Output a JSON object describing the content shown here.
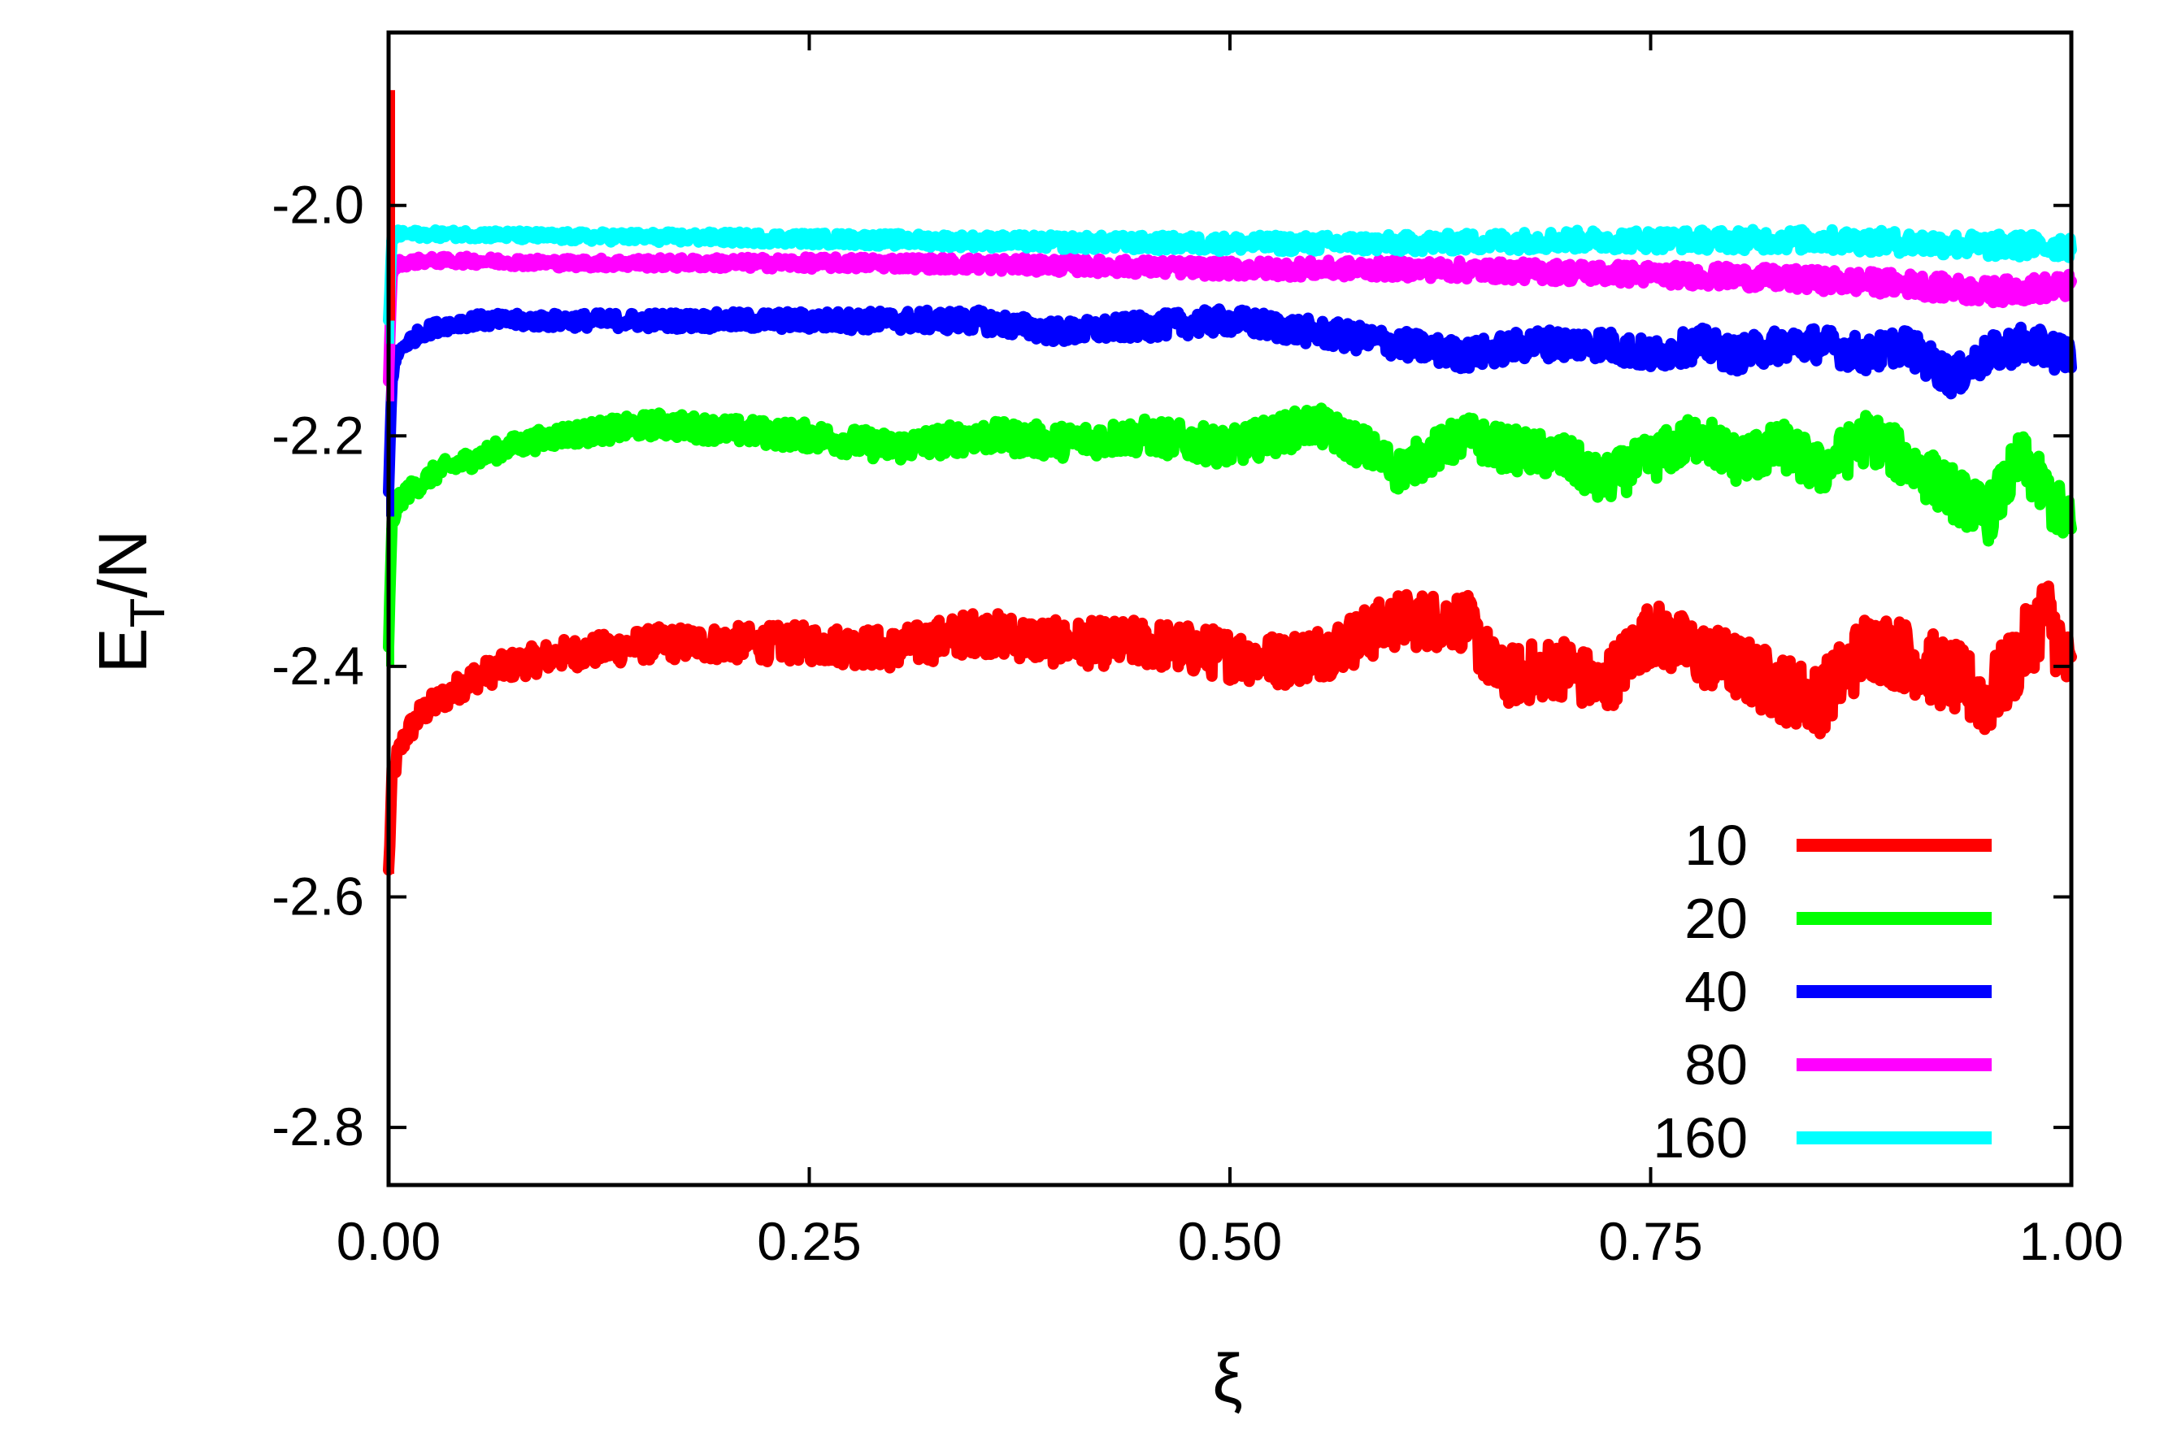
{
  "chart_data": {
    "type": "line",
    "title": "",
    "xlabel": "ξ",
    "ylabel": {
      "base": "E",
      "sub": "T",
      "suffix": "/N"
    },
    "xlim": [
      0.0,
      1.0
    ],
    "ylim": [
      -2.85,
      -1.85
    ],
    "x_ticks": [
      {
        "value": 0.0,
        "label": "0.00"
      },
      {
        "value": 0.25,
        "label": "0.25"
      },
      {
        "value": 0.5,
        "label": "0.50"
      },
      {
        "value": 0.75,
        "label": "0.75"
      },
      {
        "value": 1.0,
        "label": "1.00"
      }
    ],
    "y_ticks": [
      {
        "value": -2.0,
        "label": "-2.0"
      },
      {
        "value": -2.2,
        "label": "-2.2"
      },
      {
        "value": -2.4,
        "label": "-2.4"
      },
      {
        "value": -2.6,
        "label": "-2.6"
      },
      {
        "value": -2.8,
        "label": "-2.8"
      }
    ],
    "grid": false,
    "legend_position": "bottom-right",
    "series": [
      {
        "name": "10",
        "color": "#ff0000",
        "x": [
          0.0,
          0.002,
          0.005,
          0.01,
          0.02,
          0.03,
          0.05,
          0.07,
          0.1,
          0.13,
          0.16,
          0.2,
          0.25,
          0.3,
          0.35,
          0.4,
          0.45,
          0.5,
          0.53,
          0.56,
          0.6,
          0.64,
          0.66,
          0.7,
          0.72,
          0.75,
          0.78,
          0.8,
          0.83,
          0.85,
          0.88,
          0.9,
          0.93,
          0.95,
          0.97,
          0.985,
          1.0
        ],
        "y": [
          -2.58,
          -2.5,
          -2.48,
          -2.46,
          -2.44,
          -2.43,
          -2.41,
          -2.4,
          -2.39,
          -2.385,
          -2.38,
          -2.38,
          -2.38,
          -2.385,
          -2.37,
          -2.38,
          -2.38,
          -2.39,
          -2.395,
          -2.385,
          -2.36,
          -2.36,
          -2.41,
          -2.4,
          -2.42,
          -2.37,
          -2.39,
          -2.4,
          -2.42,
          -2.43,
          -2.38,
          -2.39,
          -2.41,
          -2.43,
          -2.39,
          -2.35,
          -2.41
        ],
        "noise": 0.022
      },
      {
        "name": "20",
        "color": "#00ff00",
        "x": [
          0.0,
          0.002,
          0.005,
          0.01,
          0.02,
          0.03,
          0.05,
          0.07,
          0.1,
          0.13,
          0.16,
          0.2,
          0.25,
          0.3,
          0.35,
          0.4,
          0.45,
          0.5,
          0.55,
          0.58,
          0.6,
          0.64,
          0.66,
          0.7,
          0.72,
          0.75,
          0.78,
          0.8,
          0.83,
          0.85,
          0.88,
          0.9,
          0.93,
          0.95,
          0.97,
          0.985,
          1.0
        ],
        "y": [
          -2.38,
          -2.28,
          -2.26,
          -2.25,
          -2.24,
          -2.23,
          -2.22,
          -2.21,
          -2.2,
          -2.195,
          -2.19,
          -2.195,
          -2.2,
          -2.21,
          -2.2,
          -2.205,
          -2.2,
          -2.21,
          -2.19,
          -2.21,
          -2.23,
          -2.2,
          -2.21,
          -2.22,
          -2.24,
          -2.22,
          -2.2,
          -2.22,
          -2.21,
          -2.23,
          -2.2,
          -2.22,
          -2.25,
          -2.27,
          -2.22,
          -2.25,
          -2.28
        ],
        "noise": 0.016
      },
      {
        "name": "40",
        "color": "#0000ff",
        "x": [
          0.0,
          0.002,
          0.005,
          0.01,
          0.02,
          0.03,
          0.05,
          0.07,
          0.1,
          0.15,
          0.2,
          0.25,
          0.3,
          0.35,
          0.4,
          0.45,
          0.5,
          0.55,
          0.6,
          0.64,
          0.68,
          0.72,
          0.75,
          0.78,
          0.8,
          0.83,
          0.85,
          0.88,
          0.9,
          0.93,
          0.95,
          0.97,
          1.0
        ],
        "y": [
          -2.25,
          -2.15,
          -2.13,
          -2.12,
          -2.11,
          -2.105,
          -2.1,
          -2.1,
          -2.1,
          -2.1,
          -2.1,
          -2.1,
          -2.1,
          -2.1,
          -2.11,
          -2.105,
          -2.1,
          -2.11,
          -2.12,
          -2.13,
          -2.12,
          -2.12,
          -2.13,
          -2.12,
          -2.13,
          -2.12,
          -2.12,
          -2.13,
          -2.12,
          -2.15,
          -2.13,
          -2.12,
          -2.13
        ],
        "noise": 0.011
      },
      {
        "name": "80",
        "color": "#ff00ff",
        "x": [
          0.0,
          0.002,
          0.005,
          0.01,
          0.02,
          0.05,
          0.1,
          0.2,
          0.3,
          0.4,
          0.5,
          0.6,
          0.7,
          0.8,
          0.85,
          0.9,
          0.95,
          1.0
        ],
        "y": [
          -2.15,
          -2.06,
          -2.05,
          -2.05,
          -2.048,
          -2.048,
          -2.05,
          -2.05,
          -2.05,
          -2.052,
          -2.055,
          -2.055,
          -2.058,
          -2.062,
          -2.065,
          -2.068,
          -2.075,
          -2.07
        ],
        "noise": 0.007
      },
      {
        "name": "160",
        "color": "#00ffff",
        "x": [
          0.0,
          0.002,
          0.005,
          0.01,
          0.02,
          0.05,
          0.1,
          0.2,
          0.3,
          0.4,
          0.5,
          0.6,
          0.7,
          0.8,
          0.85,
          0.9,
          0.95,
          1.0
        ],
        "y": [
          -2.1,
          -2.03,
          -2.025,
          -2.025,
          -2.025,
          -2.025,
          -2.027,
          -2.028,
          -2.03,
          -2.032,
          -2.033,
          -2.033,
          -2.03,
          -2.03,
          -2.03,
          -2.032,
          -2.035,
          -2.035
        ],
        "noise": 0.007
      }
    ]
  }
}
